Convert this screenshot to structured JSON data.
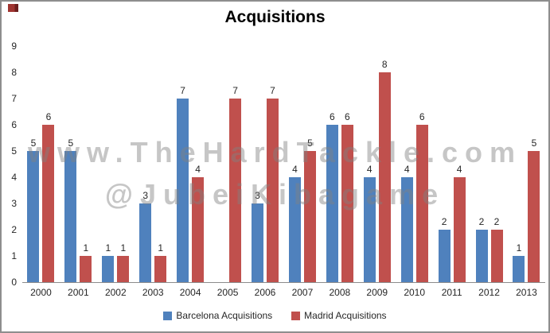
{
  "title": "Acquisitions",
  "watermark": {
    "line1": "www.TheHardTackle.com",
    "line2": "@JubeiKibagame"
  },
  "colors": {
    "barcelona_blue": "#4F81BD",
    "madrid_red": "#C0504D",
    "watermark_gray": "rgba(128,128,128,0.45)",
    "axis_line": "#8C8C8C",
    "text": "#262626",
    "frame_border": "#8E8E8E",
    "corner_mark_red": "#A03430"
  },
  "chart_data": {
    "type": "bar",
    "title": "Acquisitions",
    "categories": [
      "2000",
      "2001",
      "2002",
      "2003",
      "2004",
      "2005",
      "2006",
      "2007",
      "2008",
      "2009",
      "2010",
      "2011",
      "2012",
      "2013"
    ],
    "series": [
      {
        "name": "Barcelona Acquisitions",
        "color": "#4F81BD",
        "values": [
          5,
          5,
          1,
          3,
          7,
          0,
          3,
          4,
          6,
          4,
          4,
          2,
          2,
          1
        ]
      },
      {
        "name": "Madrid Acquisitions",
        "color": "#C0504D",
        "values": [
          6,
          1,
          1,
          1,
          4,
          7,
          7,
          5,
          6,
          8,
          6,
          4,
          2,
          5
        ]
      }
    ],
    "ylim": [
      0,
      9
    ],
    "yticks": [
      0,
      1,
      2,
      3,
      4,
      5,
      6,
      7,
      8,
      9
    ],
    "grid": false,
    "legend_position": "bottom",
    "data_labels": true,
    "note": "zero values (Barcelona 2005) show no bar and no label"
  }
}
